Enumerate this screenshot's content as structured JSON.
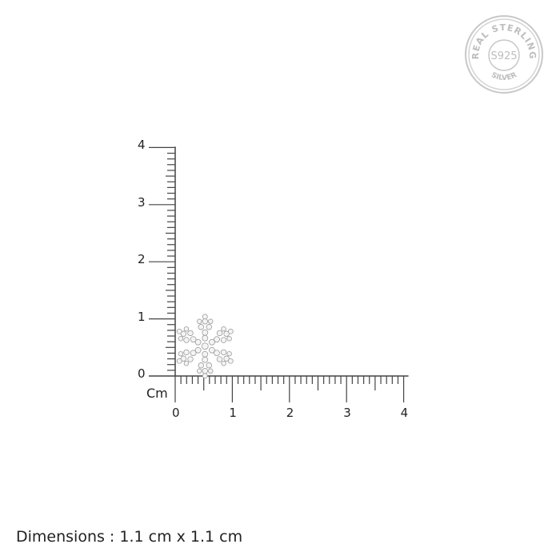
{
  "ruler": {
    "unit": "Cm",
    "x_labels": [
      "0",
      "1",
      "2",
      "3",
      "4"
    ],
    "y_labels": [
      "0",
      "1",
      "2",
      "3",
      "4"
    ],
    "range_cm": [
      0,
      4
    ],
    "minor_step_cm": 0.1
  },
  "product": {
    "shape": "snowflake",
    "width_cm": 1.1,
    "height_cm": 1.1
  },
  "dimensions_text": "Dimensions : 1.1 cm x 1.1 cm",
  "seal": {
    "top_text": "REAL STERLING",
    "center_text": "S925",
    "bottom_text": "SILVER",
    "color": "#c4c4c4"
  }
}
